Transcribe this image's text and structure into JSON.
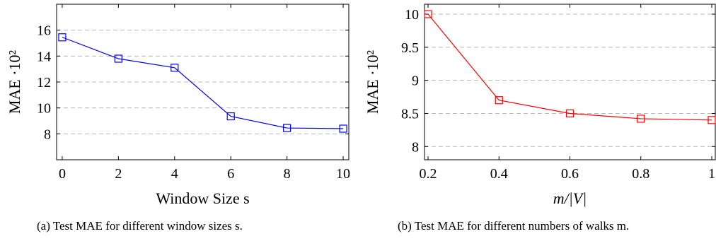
{
  "chart_data": [
    {
      "type": "line",
      "xlabel": "Window Size s",
      "ylabel": "MAE ·10²",
      "x": [
        0,
        2,
        4,
        6,
        8,
        10
      ],
      "xticks": [
        "0",
        "2",
        "4",
        "6",
        "8",
        "10"
      ],
      "yticks": [
        "8",
        "10",
        "12",
        "14",
        "16"
      ],
      "xlim": [
        -0.2,
        10.2
      ],
      "ylim": [
        6.0,
        18.0
      ],
      "grid": "horizontal dashed",
      "series": [
        {
          "values": [
            15.45,
            13.8,
            13.1,
            9.35,
            8.45,
            8.4
          ],
          "color": "#0000ff",
          "marker": "square"
        }
      ],
      "caption": "(a) Test MAE for different window sizes s."
    },
    {
      "type": "line",
      "xlabel": "m/|V|",
      "ylabel": "MAE ·10²",
      "x": [
        0.2,
        0.4,
        0.6,
        0.8,
        1.0
      ],
      "xticks": [
        "0.2",
        "0.4",
        "0.6",
        "0.8",
        "1"
      ],
      "yticks": [
        "8",
        "8.5",
        "9",
        "9.5",
        "10"
      ],
      "xlim": [
        0.19,
        1.01
      ],
      "ylim": [
        7.8,
        10.15
      ],
      "grid": "horizontal dashed",
      "series": [
        {
          "values": [
            10.0,
            8.7,
            8.5,
            8.42,
            8.4
          ],
          "color": "#ff0000",
          "marker": "square"
        }
      ],
      "caption": "(b) Test MAE for different numbers of walks m."
    }
  ]
}
